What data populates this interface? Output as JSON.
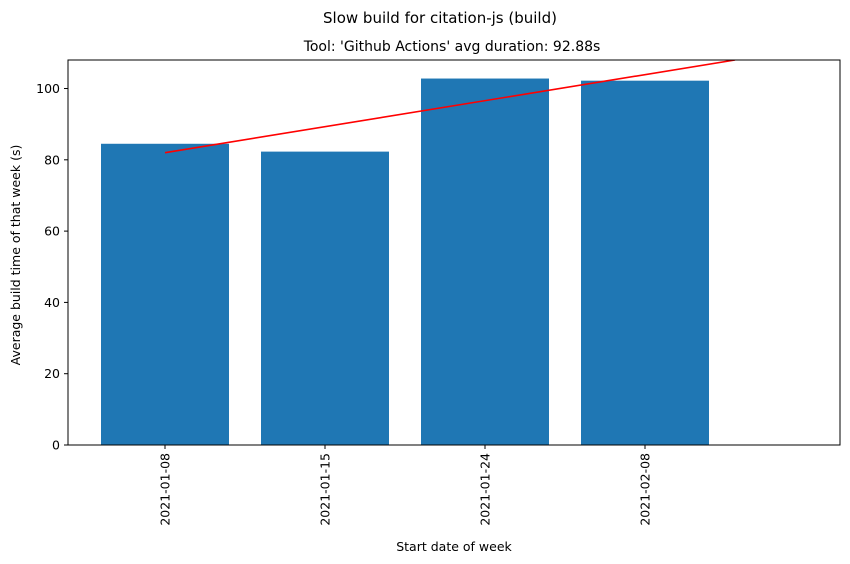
{
  "chart_data": {
    "type": "bar",
    "title": "Slow build for citation-js (build)",
    "subtitle": "Tool: 'Github Actions' avg duration: 92.88s",
    "xlabel": "Start date of week",
    "ylabel": "Average build time of that week (s)",
    "categories": [
      "2021-01-08",
      "2021-01-15",
      "2021-01-24",
      "2021-02-08"
    ],
    "values": [
      84.5,
      82.3,
      102.8,
      102.2
    ],
    "bar_color": "#1f77b4",
    "ylim": [
      0,
      108
    ],
    "yticks": [
      0,
      20,
      40,
      60,
      80,
      100
    ],
    "trend_line": {
      "color": "#ff0000",
      "start": {
        "x": "2021-01-08",
        "y": 82
      },
      "end": {
        "x": "beyond 2021-02-08",
        "y": 108
      }
    },
    "grid": false,
    "legend": "none"
  }
}
